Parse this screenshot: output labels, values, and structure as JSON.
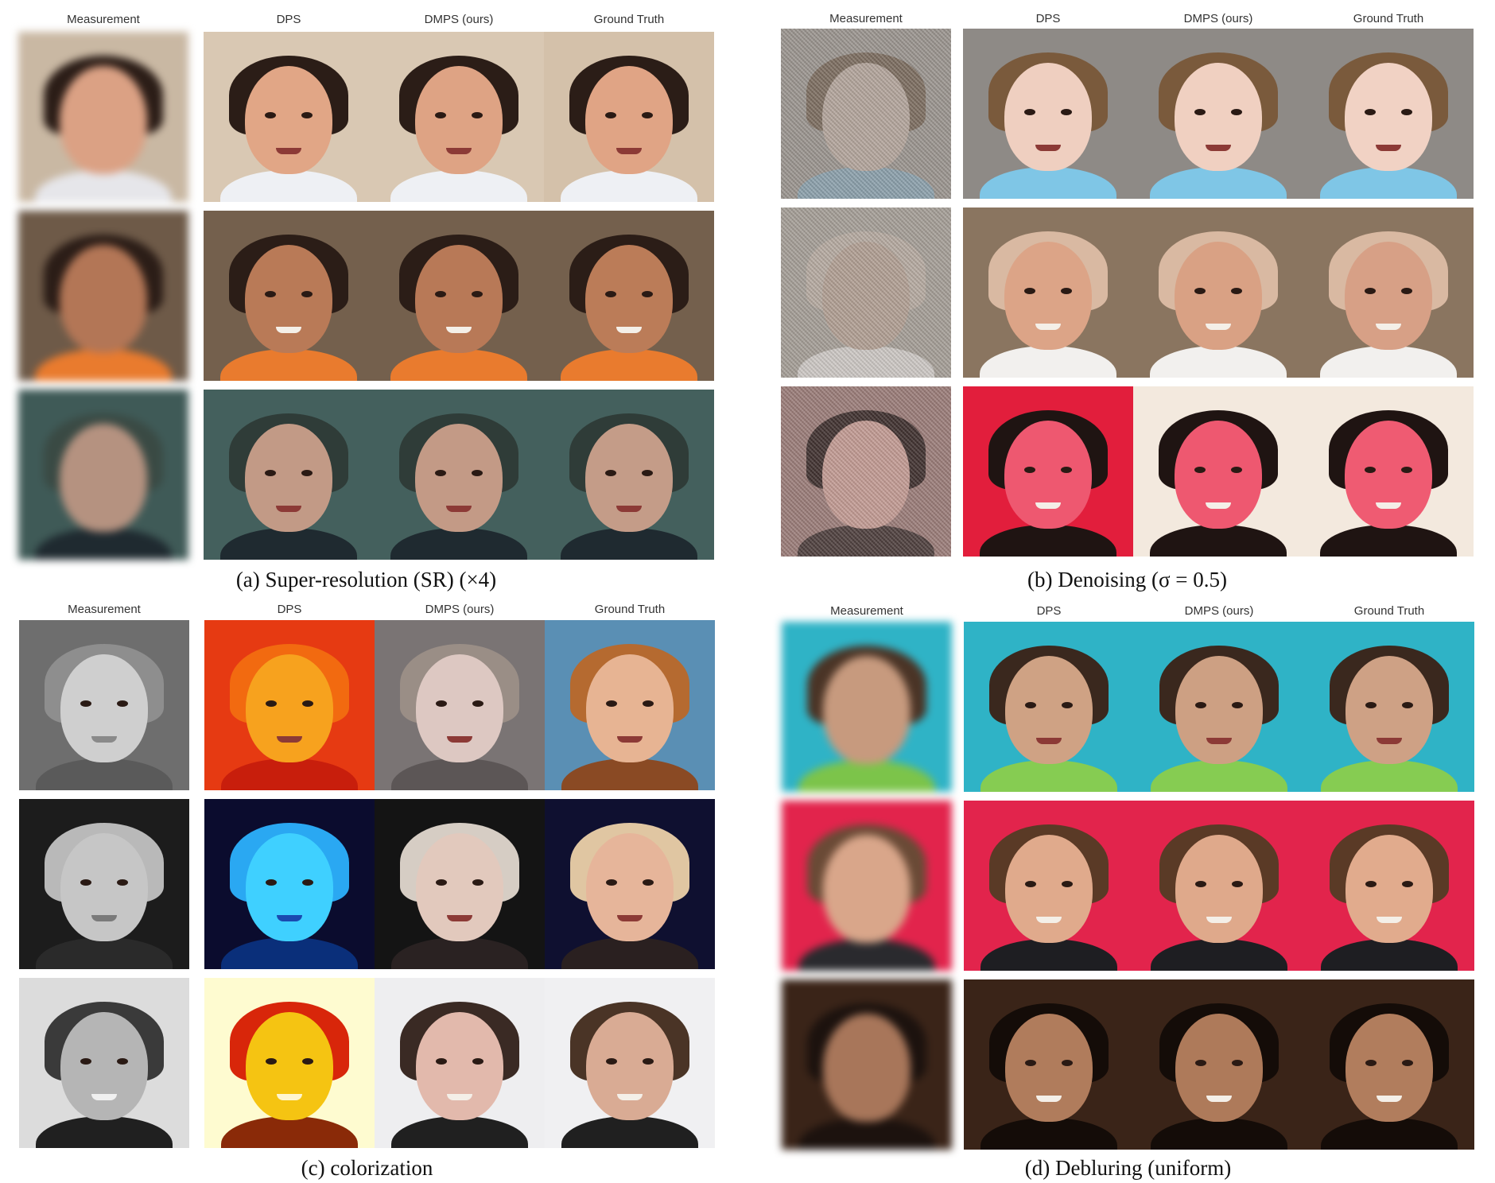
{
  "columns": [
    "Measurement",
    "DPS",
    "DMPS (ours)",
    "Ground Truth"
  ],
  "panels": [
    {
      "caption": "(a) Super-resolution (SR) (×4)"
    },
    {
      "caption": "(b) Denoising (σ = 0.5)"
    },
    {
      "caption": "(c) colorization"
    },
    {
      "caption": "(d) Debluring (uniform)"
    }
  ],
  "colors": {
    "skin_light": "#e8b79c",
    "skin_medium": "#c98e6a",
    "skin_dark": "#9a6448",
    "hair_dark": "#2b1d17",
    "hair_brown": "#5a3a24",
    "hair_blonde": "#c9ae84",
    "teal_bg": "#2fb3c6",
    "red_bg": "#e2244c",
    "wood_bg": "#6e5a48"
  }
}
